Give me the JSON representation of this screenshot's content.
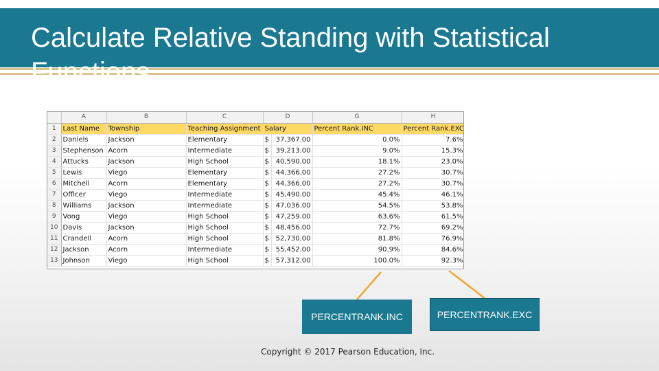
{
  "title": "Calculate Relative Standing with Statistical Functions",
  "spreadsheet": {
    "column_letters": [
      "A",
      "B",
      "C",
      "D",
      "G",
      "H"
    ],
    "header_row": [
      "Last Name",
      "Township",
      "Teaching Assignment",
      "Salary",
      "Percent Rank.INC",
      "Percent Rank.EXC"
    ],
    "rows": [
      {
        "num": "2",
        "last": "Daniels",
        "township": "Jackson",
        "assignment": "Elementary",
        "cur": "$",
        "salary": "37,367.00",
        "inc": "0.0%",
        "exc": "7.6%"
      },
      {
        "num": "3",
        "last": "Stephenson",
        "township": "Acorn",
        "assignment": "Intermediate",
        "cur": "$",
        "salary": "39,213.00",
        "inc": "9.0%",
        "exc": "15.3%"
      },
      {
        "num": "4",
        "last": "Attucks",
        "township": "Jackson",
        "assignment": "High School",
        "cur": "$",
        "salary": "40,590.00",
        "inc": "18.1%",
        "exc": "23.0%"
      },
      {
        "num": "5",
        "last": "Lewis",
        "township": "Viego",
        "assignment": "Elementary",
        "cur": "$",
        "salary": "44,366.00",
        "inc": "27.2%",
        "exc": "30.7%"
      },
      {
        "num": "6",
        "last": "Mitchell",
        "township": "Acorn",
        "assignment": "Elementary",
        "cur": "$",
        "salary": "44,366.00",
        "inc": "27.2%",
        "exc": "30.7%"
      },
      {
        "num": "7",
        "last": "Officer",
        "township": "Viego",
        "assignment": "Intermediate",
        "cur": "$",
        "salary": "45,490.00",
        "inc": "45.4%",
        "exc": "46.1%"
      },
      {
        "num": "8",
        "last": "Williams",
        "township": "Jackson",
        "assignment": "Intermediate",
        "cur": "$",
        "salary": "47,036.00",
        "inc": "54.5%",
        "exc": "53.8%"
      },
      {
        "num": "9",
        "last": "Vong",
        "township": "Viego",
        "assignment": "High School",
        "cur": "$",
        "salary": "47,259.00",
        "inc": "63.6%",
        "exc": "61.5%"
      },
      {
        "num": "10",
        "last": "Davis",
        "township": "Jackson",
        "assignment": "High School",
        "cur": "$",
        "salary": "48,456.00",
        "inc": "72.7%",
        "exc": "69.2%"
      },
      {
        "num": "11",
        "last": "Crandell",
        "township": "Acorn",
        "assignment": "High School",
        "cur": "$",
        "salary": "52,730.00",
        "inc": "81.8%",
        "exc": "76.9%"
      },
      {
        "num": "12",
        "last": "Jackson",
        "township": "Acorn",
        "assignment": "Intermediate",
        "cur": "$",
        "salary": "55,452.00",
        "inc": "90.9%",
        "exc": "84.6%"
      },
      {
        "num": "13",
        "last": "Johnson",
        "township": "Viego",
        "assignment": "High School",
        "cur": "$",
        "salary": "57,312.00",
        "inc": "100.0%",
        "exc": "92.3%"
      }
    ]
  },
  "callouts": {
    "inc": "PERCENTRANK.INC",
    "exc": "PERCENTRANK.EXC"
  },
  "copyright": "Copyright © 2017 Pearson Education, Inc.",
  "colors": {
    "title_band": "#1a7891",
    "accent_lines": "#d9c58a",
    "header_fill": "#ffd966",
    "connector": "#f0a830"
  }
}
